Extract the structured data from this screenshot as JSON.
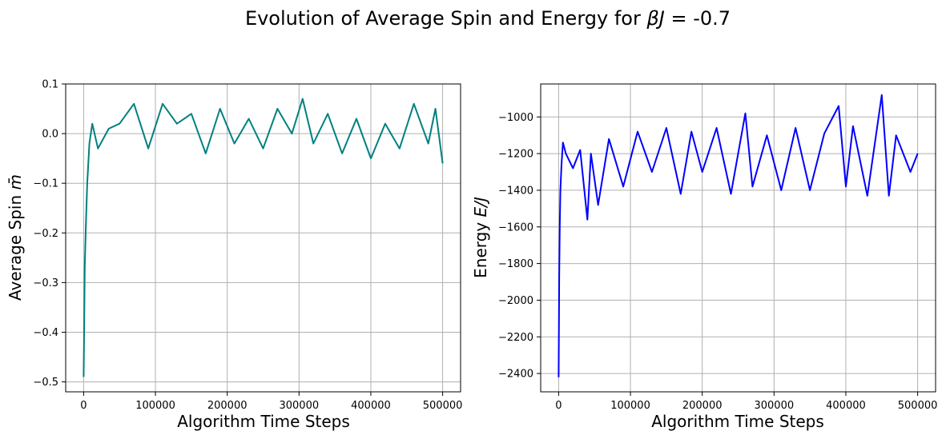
{
  "figure": {
    "suptitle_prefix": "Evolution of Average Spin and Energy for ",
    "suptitle_math": "βJ",
    "suptitle_eq": " = ",
    "suptitle_value": "-0.7"
  },
  "chart_data": [
    {
      "type": "line",
      "xlabel": "Algorithm Time Steps",
      "ylabel_prefix": "Average Spin ",
      "ylabel_math": "m̄",
      "xlim": [
        -25000,
        525000
      ],
      "ylim": [
        -0.52,
        0.1
      ],
      "xticks": [
        0,
        100000,
        200000,
        300000,
        400000,
        500000
      ],
      "xtick_labels": [
        "0",
        "100000",
        "200000",
        "300000",
        "400000",
        "500000"
      ],
      "yticks": [
        -0.5,
        -0.4,
        -0.3,
        -0.2,
        -0.1,
        0.0,
        0.1
      ],
      "ytick_labels": [
        "−0.5",
        "−0.4",
        "−0.3",
        "−0.2",
        "−0.1",
        "0.0",
        "0.1"
      ],
      "grid": true,
      "line_color": "#008080",
      "series": [
        {
          "x": [
            0,
            500,
            1500,
            3000,
            5000,
            8000,
            12000,
            20000,
            35000,
            50000,
            70000,
            90000,
            110000,
            130000,
            150000,
            170000,
            190000,
            210000,
            230000,
            250000,
            270000,
            290000,
            305000,
            320000,
            340000,
            360000,
            380000,
            400000,
            420000,
            440000,
            460000,
            480000,
            490000,
            500000
          ],
          "y": [
            -0.49,
            -0.42,
            -0.27,
            -0.19,
            -0.1,
            -0.02,
            0.02,
            -0.03,
            0.01,
            0.02,
            0.06,
            -0.03,
            0.06,
            0.02,
            0.04,
            -0.04,
            0.05,
            -0.02,
            0.03,
            -0.03,
            0.05,
            0.0,
            0.07,
            -0.02,
            0.04,
            -0.04,
            0.03,
            -0.05,
            0.02,
            -0.03,
            0.06,
            -0.02,
            0.05,
            -0.06
          ]
        }
      ]
    },
    {
      "type": "line",
      "xlabel": "Algorithm Time Steps",
      "ylabel_prefix": "Energy ",
      "ylabel_math": "E/J",
      "xlim": [
        -25000,
        525000
      ],
      "ylim": [
        -2500,
        -820
      ],
      "xticks": [
        0,
        100000,
        200000,
        300000,
        400000,
        500000
      ],
      "xtick_labels": [
        "0",
        "100000",
        "200000",
        "300000",
        "400000",
        "500000"
      ],
      "yticks": [
        -2400,
        -2200,
        -2000,
        -1800,
        -1600,
        -1400,
        -1200,
        -1000
      ],
      "ytick_labels": [
        "−2400",
        "−2200",
        "−2000",
        "−1800",
        "−1600",
        "−1400",
        "−1200",
        "−1000"
      ],
      "grid": true,
      "line_color": "#0000ff",
      "series": [
        {
          "x": [
            0,
            300,
            800,
            1500,
            2500,
            4000,
            6000,
            10000,
            20000,
            30000,
            40000,
            45000,
            55000,
            70000,
            90000,
            110000,
            130000,
            150000,
            170000,
            185000,
            200000,
            220000,
            240000,
            260000,
            270000,
            290000,
            310000,
            330000,
            350000,
            370000,
            390000,
            400000,
            410000,
            430000,
            450000,
            460000,
            470000,
            490000,
            500000
          ],
          "y": [
            -2420,
            -2200,
            -1880,
            -1600,
            -1400,
            -1260,
            -1140,
            -1200,
            -1280,
            -1180,
            -1560,
            -1200,
            -1480,
            -1120,
            -1380,
            -1080,
            -1300,
            -1060,
            -1420,
            -1080,
            -1300,
            -1060,
            -1420,
            -980,
            -1380,
            -1100,
            -1400,
            -1060,
            -1400,
            -1090,
            -940,
            -1380,
            -1050,
            -1430,
            -880,
            -1430,
            -1100,
            -1300,
            -1200
          ]
        }
      ]
    }
  ]
}
